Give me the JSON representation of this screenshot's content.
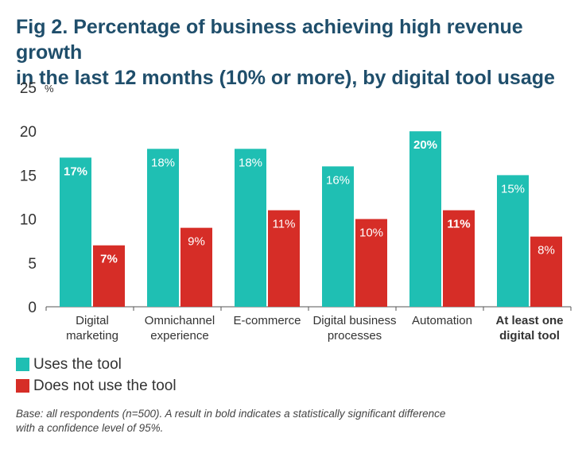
{
  "title_line1": "Fig 2. Percentage of business achieving high revenue growth",
  "title_line2": "in the last 12 months (10% or more), by digital tool usage",
  "chart_data": {
    "type": "bar",
    "unit_label": "%",
    "ylim": [
      0,
      25
    ],
    "yticks": [
      0,
      5,
      10,
      15,
      20,
      25
    ],
    "grid": false,
    "legend_position": "bottom-left",
    "categories": [
      {
        "lines": [
          "Digital",
          "marketing"
        ],
        "bold": false
      },
      {
        "lines": [
          "Omnichannel",
          "experience"
        ],
        "bold": false
      },
      {
        "lines": [
          "E-commerce"
        ],
        "bold": false
      },
      {
        "lines": [
          "Digital business",
          "processes"
        ],
        "bold": false
      },
      {
        "lines": [
          "Automation"
        ],
        "bold": false
      },
      {
        "lines": [
          "At least one",
          "digital tool"
        ],
        "bold": true
      }
    ],
    "series": [
      {
        "name": "Uses the tool",
        "color": "#1fbfb3",
        "values": [
          17,
          18,
          18,
          16,
          20,
          15
        ],
        "bold": [
          true,
          false,
          false,
          false,
          true,
          false
        ]
      },
      {
        "name": "Does not use the tool",
        "color": "#d62d27",
        "values": [
          7,
          9,
          11,
          10,
          11,
          8
        ],
        "bold": [
          true,
          false,
          false,
          false,
          true,
          false
        ]
      }
    ]
  },
  "footnote_line1": "Base: all respondents (n=500). A result in bold indicates a statistically significant difference",
  "footnote_line2": "with a confidence level of 95%."
}
